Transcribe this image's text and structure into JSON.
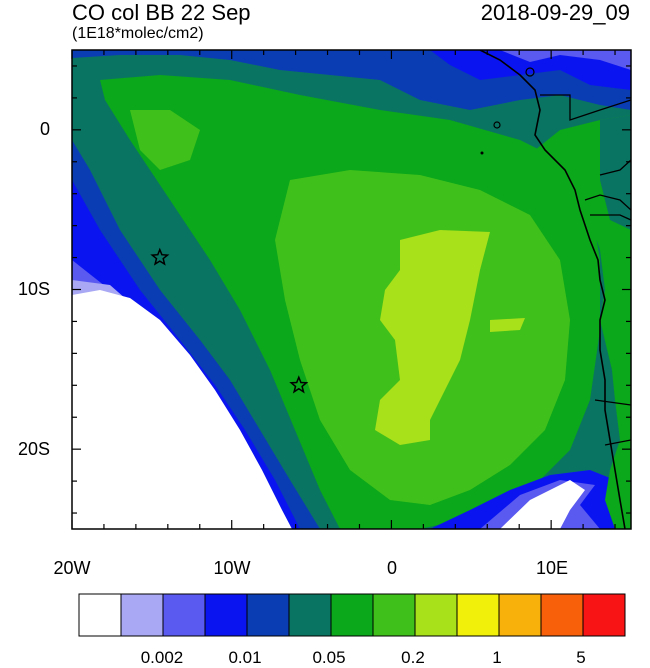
{
  "header": {
    "title": "CO col BB 22 Sep",
    "date": "2018-09-29_09",
    "units": "(1E18*molec/cm2)"
  },
  "axes": {
    "x_ticks": [
      "20W",
      "10W",
      "0",
      "10E"
    ],
    "y_ticks": [
      "0",
      "10S",
      "20S"
    ]
  },
  "colorbar": {
    "colors": [
      "#ffffff",
      "#a8a8f4",
      "#5a5af0",
      "#0a14f0",
      "#0a3cb4",
      "#0a7462",
      "#0aa81a",
      "#40c01a",
      "#a8e01a",
      "#f0f00a",
      "#f8b00a",
      "#f8600a",
      "#f81414"
    ],
    "labels": [
      "0.002",
      "0.01",
      "0.05",
      "0.2",
      "1",
      "5"
    ]
  },
  "markers": [
    {
      "name": "star-marker-1",
      "lon": -14.5,
      "lat": -8.0
    },
    {
      "name": "star-marker-2",
      "lon": -5.8,
      "lat": -16.0
    }
  ]
}
